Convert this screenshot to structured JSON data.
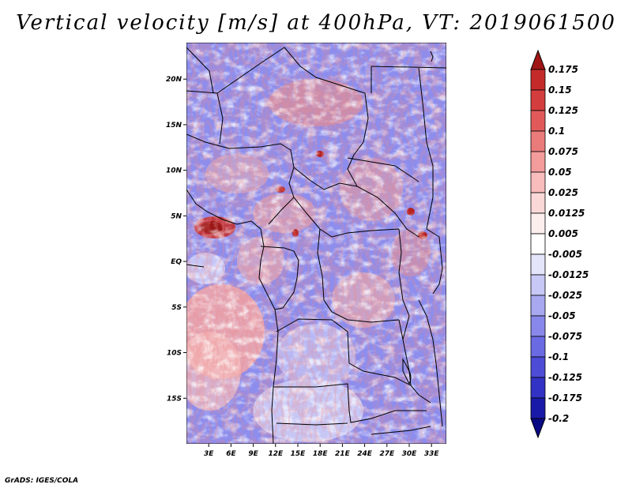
{
  "title": "Vertical velocity [m/s] at 400hPa, VT: 2019061500",
  "footer": "GrADS: IGES/COLA",
  "map": {
    "lon_range": [
      0,
      35
    ],
    "lat_range": [
      -20,
      24
    ],
    "lat_ticks": [
      {
        "value": 20,
        "label": "20N"
      },
      {
        "value": 15,
        "label": "15N"
      },
      {
        "value": 10,
        "label": "10N"
      },
      {
        "value": 5,
        "label": "5N"
      },
      {
        "value": 0,
        "label": "EQ"
      },
      {
        "value": -5,
        "label": "5S"
      },
      {
        "value": -10,
        "label": "10S"
      },
      {
        "value": -15,
        "label": "15S"
      }
    ],
    "lon_ticks": [
      {
        "value": 3,
        "label": "3E"
      },
      {
        "value": 6,
        "label": "6E"
      },
      {
        "value": 9,
        "label": "9E"
      },
      {
        "value": 12,
        "label": "12E"
      },
      {
        "value": 15,
        "label": "15E"
      },
      {
        "value": 18,
        "label": "18E"
      },
      {
        "value": 21,
        "label": "21E"
      },
      {
        "value": 24,
        "label": "24E"
      },
      {
        "value": 27,
        "label": "27E"
      },
      {
        "value": 30,
        "label": "30E"
      },
      {
        "value": 33,
        "label": "33E"
      }
    ]
  },
  "colorbar": {
    "levels": [
      "0.175",
      "0.15",
      "0.125",
      "0.1",
      "0.075",
      "0.05",
      "0.025",
      "0.0125",
      "0.005",
      "-0.005",
      "-0.0125",
      "-0.025",
      "-0.05",
      "-0.075",
      "-0.1",
      "-0.125",
      "-0.175",
      "-0.2"
    ],
    "colors": [
      "#a01616",
      "#c42a2a",
      "#d43d3d",
      "#e05a5a",
      "#ea7b7b",
      "#f29c9c",
      "#f8bcbc",
      "#fbd8d8",
      "#fdeeee",
      "#ffffff",
      "#e4e4fb",
      "#c8c8f6",
      "#a8a8f0",
      "#8888ea",
      "#6a6ae2",
      "#4c4cd6",
      "#3232c4",
      "#1a1aa8",
      "#0a0a84"
    ]
  }
}
